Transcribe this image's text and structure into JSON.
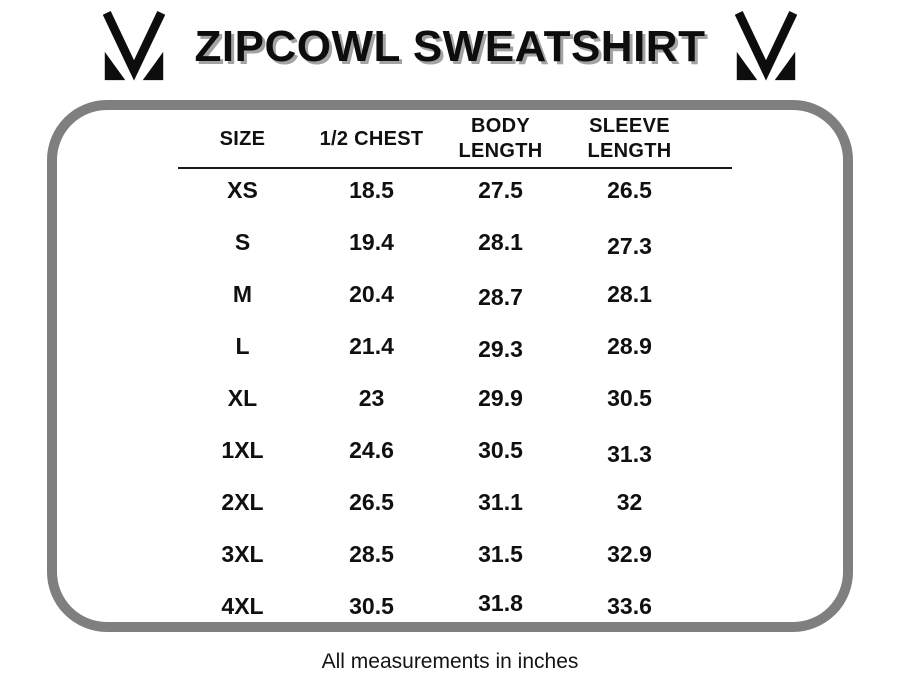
{
  "header": {
    "title": "ZIPCOWL SWEATSHIRT",
    "logo": "brand-m-logo"
  },
  "chart_data": {
    "type": "table",
    "title": "ZIPCOWL SWEATSHIRT",
    "columns": [
      "SIZE",
      "1/2 CHEST",
      "BODY LENGTH",
      "SLEEVE LENGTH"
    ],
    "rows": [
      [
        "XS",
        "18.5",
        "27.5",
        "26.5"
      ],
      [
        "S",
        "19.4",
        "28.1",
        "27.3"
      ],
      [
        "M",
        "20.4",
        "28.7",
        "28.1"
      ],
      [
        "L",
        "21.4",
        "29.3",
        "28.9"
      ],
      [
        "XL",
        "23",
        "29.9",
        "30.5"
      ],
      [
        "1XL",
        "24.6",
        "30.5",
        "31.3"
      ],
      [
        "2XL",
        "26.5",
        "31.1",
        "32"
      ],
      [
        "3XL",
        "28.5",
        "31.5",
        "32.9"
      ],
      [
        "4XL",
        "30.5",
        "31.8",
        "33.6"
      ]
    ],
    "footnote": "All measurements in inches",
    "units": "inches"
  },
  "footer": {
    "note": "All measurements in inches"
  },
  "colors": {
    "background": "#ffffff",
    "frame_border": "#7f7f7f",
    "text": "#101010",
    "title_shadow": "#a3a3a3",
    "header_rule": "#1a1a1a"
  }
}
